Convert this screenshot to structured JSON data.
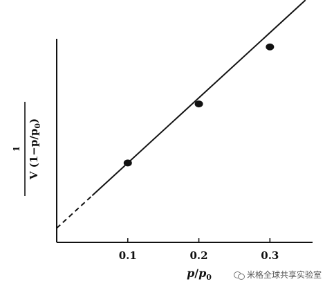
{
  "chart_data": {
    "type": "scatter",
    "title": "",
    "xlabel": {
      "main": "p",
      "slash": "/",
      "base": "p",
      "sub": "0"
    },
    "ylabel": {
      "numerator": "1",
      "denominator": "V (1−p/p",
      "denominator_sub": "0",
      "denominator_close": ")"
    },
    "xlim": [
      0,
      0.36
    ],
    "ylim": [
      0,
      1
    ],
    "x_ticks": [
      0.1,
      0.2,
      0.3
    ],
    "x_tick_labels": [
      "0.1",
      "0.2",
      "0.3"
    ],
    "series": [
      {
        "x": [
          0.1,
          0.2,
          0.3
        ],
        "y": [
          0.39,
          0.68,
          0.96
        ]
      }
    ],
    "fit_line": {
      "intercept": 0.07,
      "slope": 3.2,
      "extrapolated_below_x": 0.05,
      "x_end": 0.35
    },
    "grid": false,
    "legend": "none"
  },
  "watermark": {
    "text": "米格全球共享实验室"
  }
}
